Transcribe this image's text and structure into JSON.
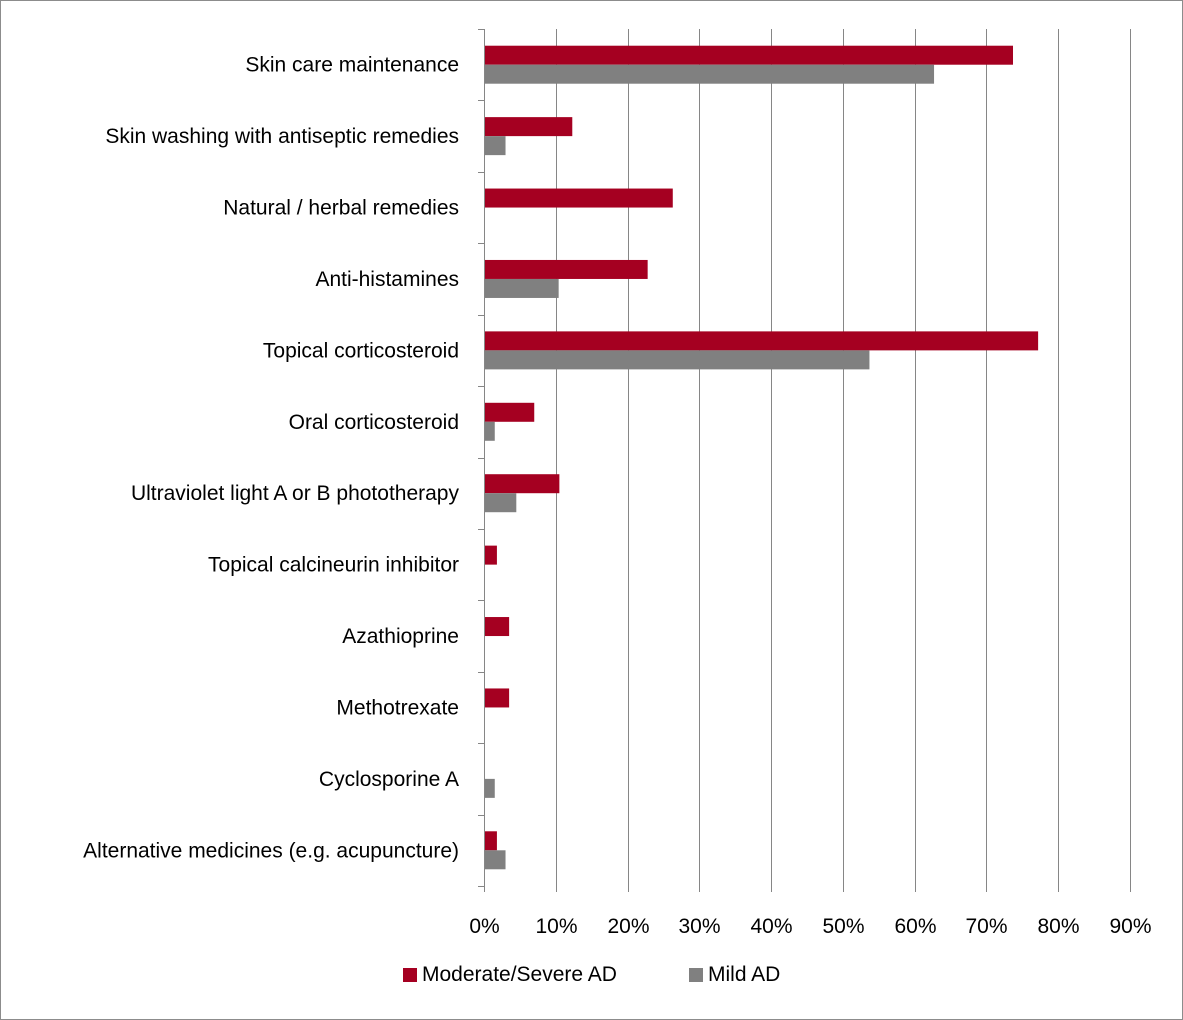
{
  "chart_data": {
    "type": "bar",
    "orientation": "horizontal",
    "categories": [
      "Skin care maintenance",
      "Skin washing with antiseptic remedies",
      "Natural / herbal remedies",
      "Anti-histamines",
      "Topical corticosteroid",
      "Oral corticosteroid",
      "Ultraviolet light A or B phototherapy",
      "Topical calcineurin inhibitor",
      "Azathioprine",
      "Methotrexate",
      "Cyclosporine A",
      "Alternative medicines (e.g. acupuncture)"
    ],
    "series": [
      {
        "name": "Moderate/Severe AD",
        "color": "#a50021",
        "values": [
          73.7,
          12.3,
          26.3,
          22.8,
          77.2,
          7.0,
          10.5,
          1.8,
          3.5,
          3.5,
          0,
          1.8
        ]
      },
      {
        "name": "Mild AD",
        "color": "#808080",
        "values": [
          62.7,
          3.0,
          0,
          10.4,
          53.7,
          1.5,
          4.5,
          0,
          0,
          0,
          1.5,
          3.0
        ]
      }
    ],
    "xlim": [
      0,
      90
    ],
    "xticks": [
      "0%",
      "10%",
      "20%",
      "30%",
      "40%",
      "50%",
      "60%",
      "70%",
      "80%",
      "90%"
    ],
    "grid": "vertical",
    "legend_position": "bottom",
    "gridline_color": "#868686"
  }
}
